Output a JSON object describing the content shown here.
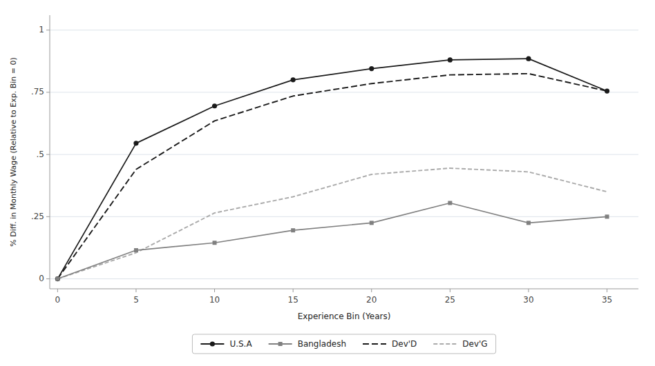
{
  "chart_data": {
    "type": "line",
    "x": [
      0,
      5,
      10,
      15,
      20,
      25,
      30,
      35
    ],
    "series": [
      {
        "name": "U.S.A",
        "color": "#1a1a1a",
        "marker": "circle",
        "line_style": "solid",
        "values": [
          0.0,
          0.545,
          0.695,
          0.8,
          0.845,
          0.88,
          0.885,
          0.755
        ]
      },
      {
        "name": "Bangladesh",
        "color": "#808080",
        "marker": "square",
        "line_style": "solid",
        "values": [
          0.0,
          0.115,
          0.145,
          0.195,
          0.225,
          0.305,
          0.225,
          0.25
        ]
      },
      {
        "name": "Dev'D",
        "color": "#1a1a1a",
        "marker": "none",
        "line_style": "dashed",
        "values": [
          0.0,
          0.44,
          0.635,
          0.735,
          0.785,
          0.82,
          0.825,
          0.755
        ]
      },
      {
        "name": "Dev'G",
        "color": "#aaaaaa",
        "marker": "none",
        "line_style": "dashed",
        "values": [
          0.0,
          0.105,
          0.265,
          0.33,
          0.42,
          0.445,
          0.43,
          0.35
        ]
      }
    ],
    "xlabel": "Experience Bin (Years)",
    "ylabel": "% Diff. in Monthly Wage (Relative to Exp. Bin = 0)",
    "xlim": [
      -0.5,
      37
    ],
    "ylim": [
      -0.04,
      1.06
    ],
    "xticks": [
      0,
      5,
      10,
      15,
      20,
      25,
      30,
      35
    ],
    "yticks": [
      0,
      {
        "value": 0.25,
        "label": ".25"
      },
      {
        "value": 0.5,
        "label": ".5"
      },
      {
        "value": 0.75,
        "label": ".75"
      },
      1
    ],
    "grid": "y",
    "legend": "bottom"
  }
}
